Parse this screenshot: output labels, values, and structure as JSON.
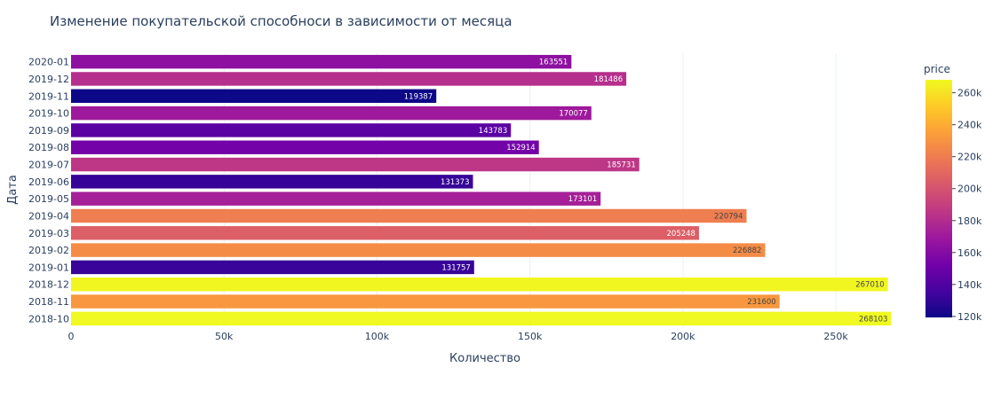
{
  "chart_data": {
    "type": "bar",
    "orientation": "horizontal",
    "title": "Изменение покупательской способноси в зависимости от месяца",
    "xlabel": "Количество",
    "ylabel": "Дата",
    "xlim": [
      0,
      270000
    ],
    "x_ticks": [
      {
        "value": 0,
        "label": "0"
      },
      {
        "value": 50000,
        "label": "50k"
      },
      {
        "value": 100000,
        "label": "100k"
      },
      {
        "value": 150000,
        "label": "150k"
      },
      {
        "value": 200000,
        "label": "200k"
      },
      {
        "value": 250000,
        "label": "250k"
      }
    ],
    "grid": true,
    "categories": [
      "2020-01",
      "2019-12",
      "2019-11",
      "2019-10",
      "2019-09",
      "2019-08",
      "2019-07",
      "2019-06",
      "2019-05",
      "2019-04",
      "2019-03",
      "2019-02",
      "2019-01",
      "2018-12",
      "2018-11",
      "2018-10"
    ],
    "values": [
      163551,
      181486,
      119387,
      170077,
      143783,
      152914,
      185731,
      131373,
      173101,
      220794,
      205248,
      226882,
      131757,
      267010,
      231600,
      268103
    ],
    "colorbar": {
      "title": "price",
      "range": [
        119387,
        268103
      ],
      "colorscale": [
        "#0d0887",
        "#46039f",
        "#7201a8",
        "#9c179e",
        "#bd3786",
        "#d8576b",
        "#ed7953",
        "#fb9f3a",
        "#fdca26",
        "#f0f921"
      ],
      "ticks": [
        {
          "value": 120000,
          "label": "120k"
        },
        {
          "value": 140000,
          "label": "140k"
        },
        {
          "value": 160000,
          "label": "160k"
        },
        {
          "value": 180000,
          "label": "180k"
        },
        {
          "value": 200000,
          "label": "200k"
        },
        {
          "value": 220000,
          "label": "220k"
        },
        {
          "value": 240000,
          "label": "240k"
        },
        {
          "value": 260000,
          "label": "260k"
        }
      ]
    }
  }
}
